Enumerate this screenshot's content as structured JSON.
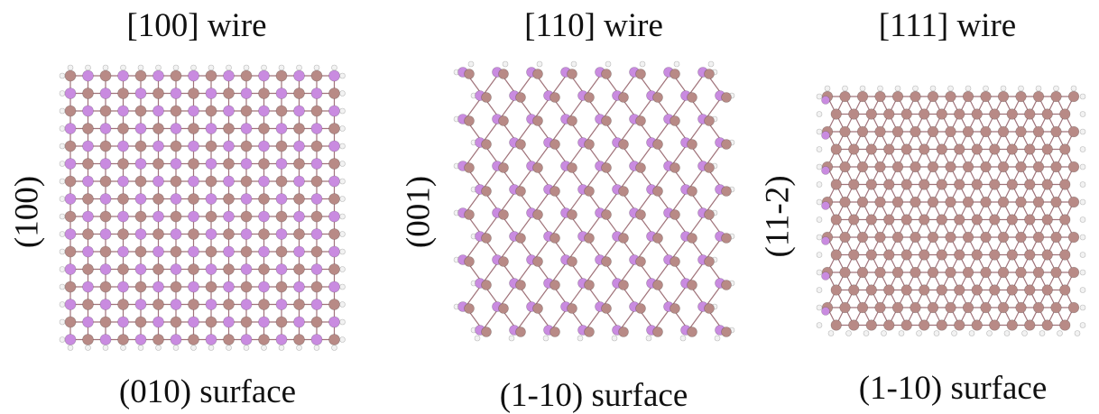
{
  "panels": [
    {
      "title": "[100] wire",
      "side_label": "(100)",
      "surface_label": "(010) surface",
      "structure": "square"
    },
    {
      "title": "[110] wire",
      "side_label": "(001)",
      "surface_label": "(1-10) surface",
      "structure": "honeycomb"
    },
    {
      "title": "[111] wire",
      "side_label": "(11-2)",
      "surface_label": "(1-10) surface",
      "structure": "triangular"
    }
  ],
  "colors": {
    "atom_a": "#b88a86",
    "atom_b": "#c98be0",
    "hydrogen": "#f2f2f2",
    "bond": "#a0737a"
  }
}
